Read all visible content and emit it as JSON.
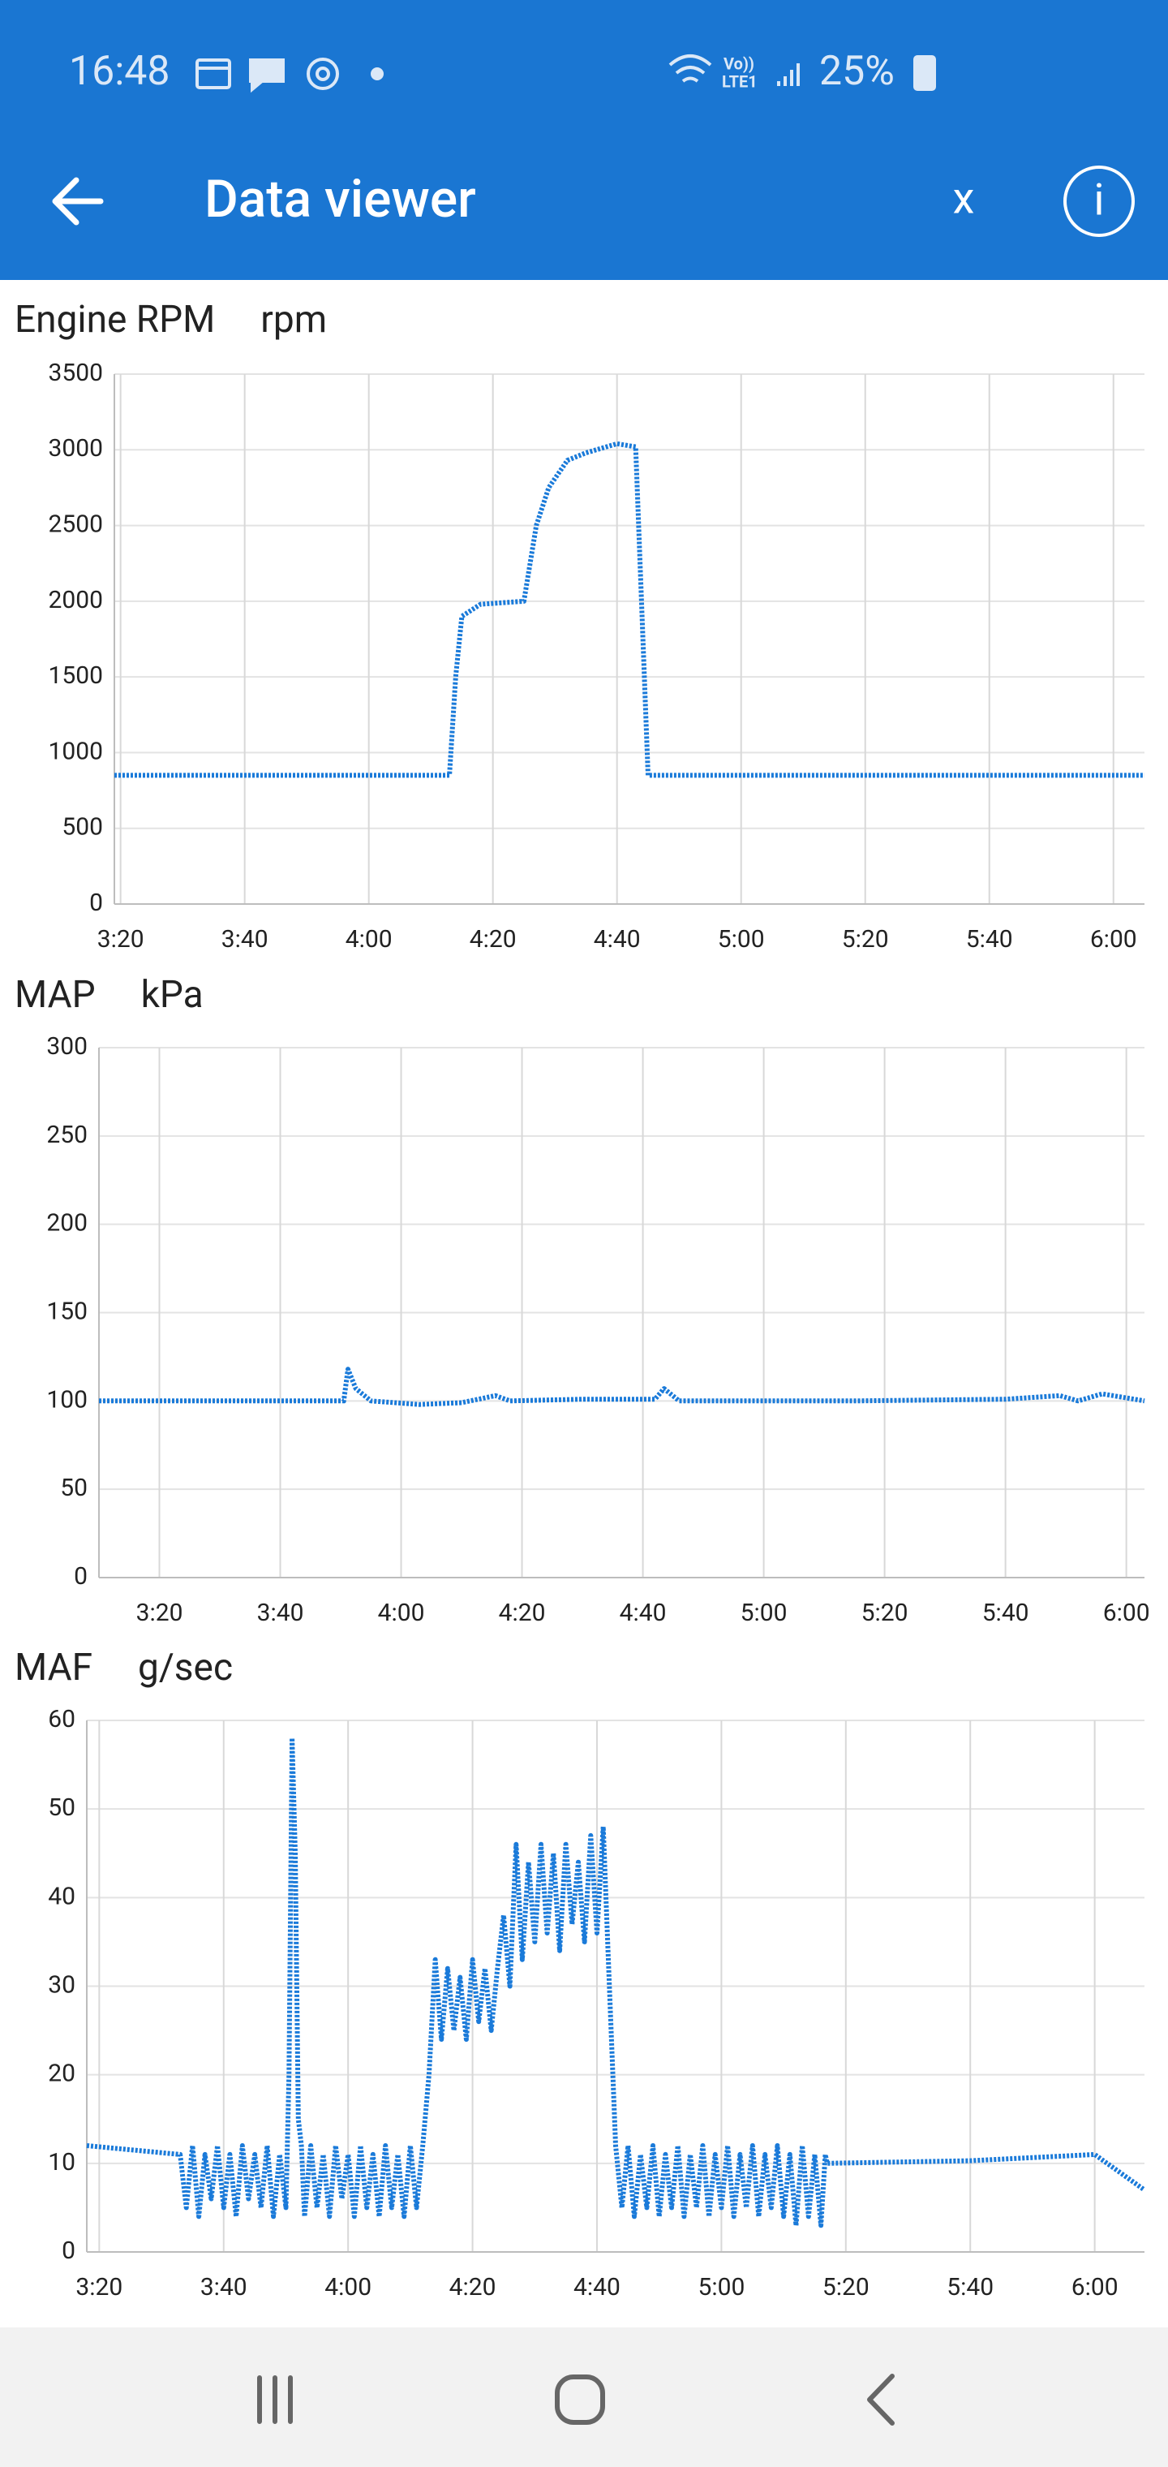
{
  "status_bar": {
    "time": "16:48",
    "volte_label": "Vo))",
    "network_label": "LTE1",
    "battery": "25%"
  },
  "app_bar": {
    "title": "Data viewer",
    "close_label": "x",
    "info_label": "i"
  },
  "chart_data": [
    {
      "type": "line",
      "title": "Engine RPM",
      "unit": "rpm",
      "color": "#1a7ad9",
      "grid": true,
      "x": [
        199,
        215,
        230,
        245,
        253,
        254,
        255,
        258,
        265,
        267,
        269,
        272,
        275,
        280,
        283,
        285,
        300,
        320,
        340,
        365
      ],
      "values": [
        850,
        850,
        850,
        850,
        850,
        1500,
        1900,
        1980,
        2000,
        2500,
        2750,
        2930,
        2980,
        3040,
        3020,
        850,
        850,
        850,
        850,
        850
      ],
      "xlim": [
        199,
        365
      ],
      "ylim": [
        0,
        3500
      ],
      "xticks": [
        {
          "value": 200,
          "label": "3:20"
        },
        {
          "value": 220,
          "label": "3:40"
        },
        {
          "value": 240,
          "label": "4:00"
        },
        {
          "value": 260,
          "label": "4:20"
        },
        {
          "value": 280,
          "label": "4:40"
        },
        {
          "value": 300,
          "label": "5:00"
        },
        {
          "value": 320,
          "label": "5:20"
        },
        {
          "value": 340,
          "label": "5:40"
        },
        {
          "value": 360,
          "label": "6:00"
        }
      ],
      "yticks": [
        0,
        500,
        1000,
        1500,
        2000,
        2500,
        3000,
        3500
      ]
    },
    {
      "type": "line",
      "title": "MAP",
      "unit": "kPa",
      "color": "#1a7ad9",
      "grid": true,
      "x": [
        190,
        220,
        230.5,
        231.2,
        232.5,
        235,
        243,
        250,
        255.6,
        258,
        270,
        282,
        283.5,
        286,
        315,
        340,
        349,
        352,
        356,
        363
      ],
      "values": [
        100,
        100,
        100,
        118,
        107,
        100,
        98,
        99,
        103,
        100,
        101,
        101,
        107,
        100,
        100,
        101,
        103,
        100,
        104,
        100
      ],
      "xlim": [
        190,
        363
      ],
      "ylim": [
        0,
        300
      ],
      "xticks": [
        {
          "value": 200,
          "label": "3:20"
        },
        {
          "value": 220,
          "label": "3:40"
        },
        {
          "value": 240,
          "label": "4:00"
        },
        {
          "value": 260,
          "label": "4:20"
        },
        {
          "value": 280,
          "label": "4:40"
        },
        {
          "value": 300,
          "label": "5:00"
        },
        {
          "value": 320,
          "label": "5:20"
        },
        {
          "value": 340,
          "label": "5:40"
        },
        {
          "value": 360,
          "label": "6:00"
        }
      ],
      "yticks": [
        0,
        50,
        100,
        150,
        200,
        250,
        300
      ]
    },
    {
      "type": "line",
      "title": "MAF",
      "unit": "g/sec",
      "color": "#1a7ad9",
      "grid": true,
      "x": [
        198,
        213,
        214,
        215,
        216,
        217,
        218,
        219,
        220,
        221,
        222,
        223,
        224,
        225,
        226,
        227,
        228,
        229,
        230,
        230.5,
        231,
        231.5,
        232,
        232.5,
        233,
        234,
        235,
        236,
        237,
        238,
        239,
        240,
        241,
        242,
        243,
        244,
        245,
        246,
        247,
        248,
        249,
        250,
        251,
        252,
        253,
        254,
        255,
        256,
        257,
        258,
        259,
        260,
        261,
        262,
        263,
        264,
        265,
        266,
        267,
        268,
        269,
        270,
        271,
        272,
        273,
        274,
        275,
        276,
        277,
        278,
        279,
        280,
        281,
        282,
        283,
        284,
        285,
        286,
        287,
        288,
        289,
        290,
        291,
        292,
        293,
        294,
        295,
        296,
        297,
        298,
        299,
        300,
        301,
        302,
        303,
        304,
        305,
        306,
        307,
        308,
        309,
        310,
        311,
        312,
        313,
        314,
        315,
        316,
        316.7,
        317,
        340,
        360,
        368
      ],
      "values": [
        12,
        11,
        5,
        12,
        4,
        11,
        6,
        12,
        5,
        11,
        4,
        12,
        6,
        11,
        5,
        12,
        4,
        11,
        5,
        20,
        58,
        45,
        15,
        12,
        4,
        12,
        5,
        11,
        4,
        12,
        6,
        11,
        4,
        12,
        5,
        11,
        4,
        12,
        5,
        11,
        4,
        12,
        5,
        12,
        20,
        33,
        24,
        32,
        25,
        31,
        24,
        33,
        26,
        32,
        25,
        32,
        38,
        30,
        46,
        33,
        44,
        35,
        46,
        36,
        45,
        34,
        46,
        37,
        44,
        35,
        47,
        36,
        48,
        30,
        12,
        5,
        12,
        4,
        11,
        5,
        12,
        4,
        11,
        5,
        12,
        4,
        11,
        5,
        12,
        4,
        11,
        5,
        12,
        4,
        11,
        5,
        12,
        4,
        11,
        5,
        12,
        4,
        11,
        3,
        12,
        4,
        11,
        3,
        11,
        10,
        10.3,
        11,
        7
      ],
      "xlim": [
        198,
        368
      ],
      "ylim": [
        0,
        60
      ],
      "xticks": [
        {
          "value": 200,
          "label": "3:20"
        },
        {
          "value": 220,
          "label": "3:40"
        },
        {
          "value": 240,
          "label": "4:00"
        },
        {
          "value": 260,
          "label": "4:20"
        },
        {
          "value": 280,
          "label": "4:40"
        },
        {
          "value": 300,
          "label": "5:00"
        },
        {
          "value": 320,
          "label": "5:20"
        },
        {
          "value": 340,
          "label": "5:40"
        },
        {
          "value": 360,
          "label": "6:00"
        }
      ],
      "yticks": [
        0,
        10,
        20,
        30,
        40,
        50,
        60
      ]
    }
  ]
}
